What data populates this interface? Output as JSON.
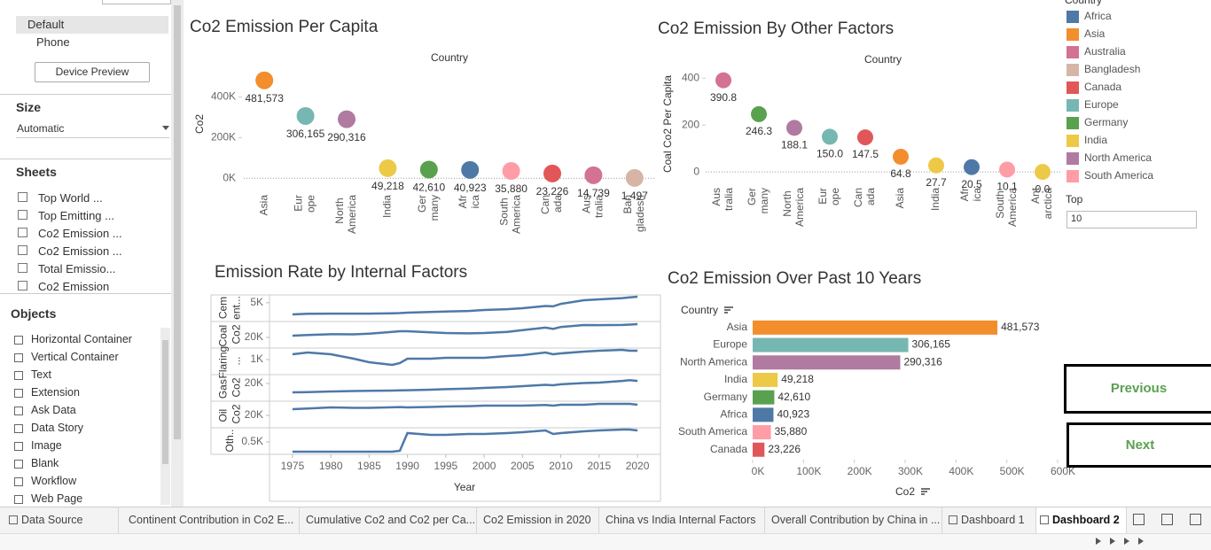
{
  "sidebar": {
    "device": [
      "Default",
      "Phone"
    ],
    "device_preview": "Device Preview",
    "size_title": "Size",
    "size_value": "Automatic",
    "sheets_title": "Sheets",
    "sheets": [
      "Top World ...",
      "Top Emitting ...",
      "Co2 Emission ...",
      "Co2 Emission ...",
      "Total Emissio...",
      "Co2 Emission"
    ],
    "objects_title": "Objects",
    "objects": [
      "Horizontal Container",
      "Vertical Container",
      "Text",
      "Extension",
      "Ask Data",
      "Data Story",
      "Image",
      "Blank",
      "Workflow",
      "Web Page"
    ]
  },
  "chart_data": [
    {
      "type": "dot",
      "title": "Co2 Emission Per Capita",
      "header": "Country",
      "ylabel": "Co2",
      "categories": [
        "Asia",
        "Europe",
        "North America",
        "India",
        "Germany",
        "Africa",
        "South America",
        "Canada",
        "Australia",
        "Bangladesh"
      ],
      "values": [
        481573,
        306165,
        290316,
        49218,
        42610,
        40923,
        35880,
        23226,
        14739,
        1497
      ],
      "value_labels": [
        "481,573",
        "306,165",
        "290,316",
        "49,218",
        "42,610",
        "40,923",
        "35,880",
        "23,226",
        "14,739",
        "1,497"
      ],
      "colors": [
        "#f28e2b",
        "#76b7b2",
        "#b07aa1",
        "#edc948",
        "#59a14f",
        "#4e79a7",
        "#ff9da7",
        "#e15759",
        "#d37295",
        "#d7b5a6"
      ],
      "ylim": [
        -60000,
        550000
      ],
      "yticks": [
        {
          "value": 0,
          "label": "0K"
        },
        {
          "value": 200000,
          "label": "200K"
        },
        {
          "value": 400000,
          "label": "400K"
        }
      ],
      "zero_line": true
    },
    {
      "type": "dot",
      "title": "Co2 Emission By Other Factors",
      "header": "Country",
      "ylabel": "Coal Co2 Per Capita",
      "categories": [
        "Australia",
        "Germany",
        "North America",
        "Europe",
        "Canada",
        "Asia",
        "India",
        "Africa",
        "South America",
        "Antarctica"
      ],
      "values": [
        390.8,
        246.3,
        188.1,
        150.0,
        147.5,
        64.8,
        27.7,
        20.5,
        10.1,
        0.0
      ],
      "value_labels": [
        "390.8",
        "246.3",
        "188.1",
        "150.0",
        "147.5",
        "64.8",
        "27.7",
        "20.5",
        "10.1",
        "0.0"
      ],
      "colors": [
        "#d37295",
        "#59a14f",
        "#b07aa1",
        "#76b7b2",
        "#e15759",
        "#f28e2b",
        "#edc948",
        "#4e79a7",
        "#ff9da7",
        "#edc948"
      ],
      "ylim": [
        -60,
        450
      ],
      "yticks": [
        0,
        200,
        400
      ],
      "zero_line": true
    },
    {
      "type": "line",
      "title": "Emission Rate by Internal Factors",
      "xlabel": "Year",
      "x": [
        1975,
        1977,
        1980,
        1983,
        1985,
        1988,
        1989,
        1990,
        1993,
        1995,
        1998,
        2000,
        2003,
        2005,
        2008,
        2009,
        2010,
        2013,
        2015,
        2018,
        2019,
        2020
      ],
      "xlim": [
        1972,
        2023
      ],
      "xticks": [
        1975,
        1980,
        1985,
        1990,
        1995,
        2000,
        2005,
        2010,
        2015,
        2020
      ],
      "series": [
        {
          "name": "Cement...",
          "color": "#4e79a7",
          "ylim": [
            0,
            7200
          ],
          "yticks": [
            {
              "value": 5000,
              "label": "5K"
            }
          ],
          "values": [
            1750,
            1900,
            1950,
            1950,
            1950,
            2050,
            2100,
            2230,
            2400,
            2550,
            2700,
            2980,
            3200,
            3480,
            4100,
            4000,
            4700,
            5700,
            5960,
            6300,
            6500,
            6700
          ]
        },
        {
          "name": "Coal Co2",
          "color": "#4e79a7",
          "ylim": [
            12000,
            33000
          ],
          "yticks": [
            {
              "value": 20000,
              "label": "20K"
            }
          ],
          "values": [
            21400,
            22000,
            22600,
            22500,
            23000,
            24500,
            25000,
            25000,
            24200,
            23600,
            23300,
            23600,
            24500,
            26000,
            28000,
            27000,
            28500,
            30100,
            30000,
            30200,
            30500,
            30800
          ]
        },
        {
          "name": "Flaring ...",
          "color": "#4e79a7",
          "ylim": [
            200,
            1650
          ],
          "yticks": [
            {
              "value": 1000,
              "label": "1K"
            }
          ],
          "values": [
            1300,
            1400,
            1300,
            1050,
            850,
            700,
            800,
            1050,
            1050,
            1100,
            1100,
            1100,
            1200,
            1250,
            1400,
            1300,
            1350,
            1450,
            1500,
            1550,
            1500,
            1500
          ]
        },
        {
          "name": "Gas Co2",
          "color": "#4e79a7",
          "ylim": [
            0,
            30500
          ],
          "yticks": [
            {
              "value": 20000,
              "label": "20K"
            }
          ],
          "values": [
            9470,
            9800,
            10500,
            11000,
            11300,
            11570,
            11800,
            12000,
            12600,
            13200,
            14000,
            14700,
            15800,
            16800,
            18400,
            17900,
            19000,
            20500,
            21000,
            23000,
            24000,
            23000
          ]
        },
        {
          "name": "Oil Co2",
          "color": "#4e79a7",
          "ylim": [
            10000,
            32300
          ],
          "yticks": [
            {
              "value": 20000,
              "label": "20K"
            }
          ],
          "values": [
            25380,
            26000,
            26920,
            26500,
            26500,
            27000,
            27200,
            26900,
            27300,
            27690,
            28000,
            28460,
            28460,
            28460,
            29000,
            28460,
            29230,
            29230,
            30000,
            30000,
            30000,
            29230
          ]
        },
        {
          "name": "Oth..",
          "color": "#4e79a7",
          "ylim": [
            0,
            1115
          ],
          "yticks": [
            {
              "value": 500,
              "label": "0.5K"
            }
          ],
          "values": [
            77,
            77,
            77,
            77,
            77,
            77,
            115,
            883,
            806,
            806,
            845,
            845,
            883,
            922,
            998,
            845,
            883,
            960,
            998,
            1037,
            1037,
            998
          ]
        }
      ]
    },
    {
      "type": "hbar",
      "title": "Co2 Emission Over Past 10 Years",
      "header": "Country",
      "xlabel": "Co2",
      "categories": [
        "Asia",
        "Europe",
        "North America",
        "India",
        "Germany",
        "Africa",
        "South America",
        "Canada"
      ],
      "values": [
        481573,
        306165,
        290316,
        49218,
        42610,
        40923,
        35880,
        23226
      ],
      "value_labels": [
        "481,573",
        "306,165",
        "290,316",
        "49,218",
        "42,610",
        "40,923",
        "35,880",
        "23,226"
      ],
      "colors": [
        "#f28e2b",
        "#76b7b2",
        "#b07aa1",
        "#edc948",
        "#59a14f",
        "#4e79a7",
        "#ff9da7",
        "#e15759"
      ],
      "xlim": [
        0,
        600000
      ],
      "xticks": [
        {
          "value": 0,
          "label": "0K"
        },
        {
          "value": 100000,
          "label": "100K"
        },
        {
          "value": 200000,
          "label": "200K"
        },
        {
          "value": 300000,
          "label": "300K"
        },
        {
          "value": 400000,
          "label": "400K"
        },
        {
          "value": 500000,
          "label": "500K"
        },
        {
          "value": 600000,
          "label": "600K"
        }
      ]
    }
  ],
  "legend": {
    "title": "Country",
    "items": [
      {
        "name": "Africa",
        "color": "#4e79a7"
      },
      {
        "name": "Asia",
        "color": "#f28e2b"
      },
      {
        "name": "Australia",
        "color": "#d37295"
      },
      {
        "name": "Bangladesh",
        "color": "#d7b5a6"
      },
      {
        "name": "Canada",
        "color": "#e15759"
      },
      {
        "name": "Europe",
        "color": "#76b7b2"
      },
      {
        "name": "Germany",
        "color": "#59a14f"
      },
      {
        "name": "India",
        "color": "#edc948"
      },
      {
        "name": "North America",
        "color": "#b07aa1"
      },
      {
        "name": "South America",
        "color": "#ff9da7"
      }
    ]
  },
  "filter": {
    "title": "Top",
    "value": "10"
  },
  "buttons": [
    "Previous",
    "Next"
  ],
  "tabs": [
    "Data Source",
    "Continent Contribution in Co2 E...",
    "Cumulative Co2 and Co2 per Ca...",
    "Co2 Emission in 2020",
    "China vs India Internal Factors",
    "Overall Contribution by China in ...",
    "Dashboard 1",
    "Dashboard 2"
  ]
}
